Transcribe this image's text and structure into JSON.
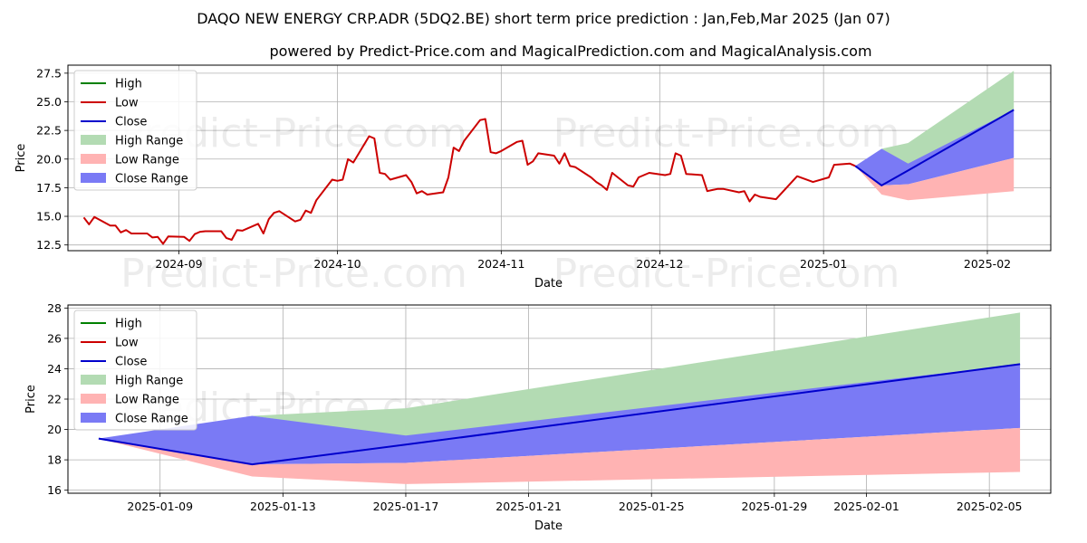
{
  "title": "DAQO NEW ENERGY CRP.ADR (5DQ2.BE) short term price prediction : Jan,Feb,Mar 2025 (Jan 07)",
  "subtitle": "powered by Predict-Price.com and MagicalPrediction.com and MagicalAnalysis.com",
  "watermark": "Predict-Price.com",
  "colors": {
    "high": "#008000",
    "low": "#cc0000",
    "close": "#0000cc",
    "high_range": "#b3dbb3",
    "low_range": "#ffb3b3",
    "close_range": "#7a7af5"
  },
  "legend": [
    "High",
    "Low",
    "Close",
    "High Range",
    "Low Range",
    "Close Range"
  ],
  "chart_data": [
    {
      "type": "line",
      "xlabel": "Date",
      "ylabel": "Price",
      "ylim": [
        12.0,
        28.2
      ],
      "xlim": [
        "2024-08-11",
        "2025-02-13"
      ],
      "yticks": [
        "12.5",
        "15.0",
        "17.5",
        "20.0",
        "22.5",
        "25.0",
        "27.5"
      ],
      "xticks": [
        "2024-09",
        "2024-10",
        "2024-11",
        "2024-12",
        "2025-01",
        "2025-02"
      ],
      "grid": true,
      "legend_position": "top-left",
      "history": {
        "name": "Low",
        "x": [
          "2024-08-14",
          "2024-08-15",
          "2024-08-16",
          "2024-08-19",
          "2024-08-20",
          "2024-08-21",
          "2024-08-22",
          "2024-08-23",
          "2024-08-26",
          "2024-08-27",
          "2024-08-28",
          "2024-08-29",
          "2024-08-30",
          "2024-09-02",
          "2024-09-03",
          "2024-09-04",
          "2024-09-05",
          "2024-09-06",
          "2024-09-09",
          "2024-09-10",
          "2024-09-11",
          "2024-09-12",
          "2024-09-13",
          "2024-09-16",
          "2024-09-17",
          "2024-09-18",
          "2024-09-19",
          "2024-09-20",
          "2024-09-23",
          "2024-09-24",
          "2024-09-25",
          "2024-09-26",
          "2024-09-27",
          "2024-09-30",
          "2024-10-01",
          "2024-10-02",
          "2024-10-03",
          "2024-10-04",
          "2024-10-07",
          "2024-10-08",
          "2024-10-09",
          "2024-10-10",
          "2024-10-11",
          "2024-10-14",
          "2024-10-15",
          "2024-10-16",
          "2024-10-17",
          "2024-10-18",
          "2024-10-21",
          "2024-10-22",
          "2024-10-23",
          "2024-10-24",
          "2024-10-25",
          "2024-10-28",
          "2024-10-29",
          "2024-10-30",
          "2024-10-31",
          "2024-11-01",
          "2024-11-04",
          "2024-11-05",
          "2024-11-06",
          "2024-11-07",
          "2024-11-08",
          "2024-11-11",
          "2024-11-12",
          "2024-11-13",
          "2024-11-14",
          "2024-11-15",
          "2024-11-18",
          "2024-11-19",
          "2024-11-20",
          "2024-11-21",
          "2024-11-22",
          "2024-11-25",
          "2024-11-26",
          "2024-11-27",
          "2024-11-28",
          "2024-11-29",
          "2024-12-02",
          "2024-12-03",
          "2024-12-04",
          "2024-12-05",
          "2024-12-06",
          "2024-12-09",
          "2024-12-10",
          "2024-12-11",
          "2024-12-12",
          "2024-12-13",
          "2024-12-16",
          "2024-12-17",
          "2024-12-18",
          "2024-12-19",
          "2024-12-20",
          "2024-12-23",
          "2024-12-27",
          "2024-12-30",
          "2025-01-02",
          "2025-01-03",
          "2025-01-06",
          "2025-01-07"
        ],
        "values": [
          14.9,
          14.3,
          14.95,
          14.2,
          14.2,
          13.6,
          13.8,
          13.5,
          13.5,
          13.15,
          13.2,
          12.6,
          13.25,
          13.2,
          12.85,
          13.45,
          13.65,
          13.7,
          13.7,
          13.1,
          12.95,
          13.8,
          13.75,
          14.35,
          13.5,
          14.75,
          15.3,
          15.45,
          14.55,
          14.7,
          15.5,
          15.3,
          16.4,
          18.2,
          18.1,
          18.2,
          20.0,
          19.7,
          22.0,
          21.8,
          18.8,
          18.7,
          18.2,
          18.6,
          18.0,
          17.0,
          17.2,
          16.9,
          17.1,
          18.4,
          21.0,
          20.7,
          21.6,
          23.4,
          23.5,
          20.6,
          20.5,
          20.7,
          21.5,
          21.6,
          19.5,
          19.8,
          20.5,
          20.3,
          19.6,
          20.5,
          19.4,
          19.3,
          18.4,
          18.0,
          17.7,
          17.3,
          18.8,
          17.7,
          17.6,
          18.4,
          18.6,
          18.8,
          18.6,
          18.7,
          20.5,
          20.3,
          18.7,
          18.6,
          17.2,
          17.3,
          17.4,
          17.4,
          17.1,
          17.2,
          16.3,
          16.9,
          16.7,
          16.5,
          18.5,
          18.0,
          18.4,
          19.5,
          19.6,
          19.4
        ]
      }
    },
    {
      "type": "area",
      "xlabel": "Date",
      "ylabel": "Price",
      "ylim": [
        15.8,
        28.2
      ],
      "xlim": [
        "2025-01-06",
        "2025-02-07"
      ],
      "yticks": [
        "16",
        "18",
        "20",
        "22",
        "24",
        "26",
        "28"
      ],
      "xticks": [
        "2025-01-09",
        "2025-01-13",
        "2025-01-17",
        "2025-01-21",
        "2025-01-25",
        "2025-01-29",
        "2025-02-01",
        "2025-02-05"
      ],
      "grid": true,
      "legend_position": "top-left",
      "x": [
        "2025-01-07",
        "2025-01-12",
        "2025-01-17",
        "2025-02-06"
      ],
      "series": [
        {
          "name": "High Range",
          "upper": [
            19.4,
            20.9,
            21.4,
            27.7
          ],
          "lower": [
            19.4,
            20.9,
            19.5,
            24.3
          ]
        },
        {
          "name": "Close Range",
          "upper": [
            19.4,
            20.9,
            19.6,
            24.3
          ],
          "lower": [
            19.4,
            17.7,
            17.8,
            20.1
          ]
        },
        {
          "name": "Low Range",
          "upper": [
            19.4,
            17.7,
            17.8,
            20.1
          ],
          "lower": [
            19.4,
            16.9,
            16.4,
            17.2
          ]
        },
        {
          "name": "Close",
          "values": [
            19.4,
            17.7,
            19.0,
            24.3
          ]
        }
      ]
    }
  ]
}
